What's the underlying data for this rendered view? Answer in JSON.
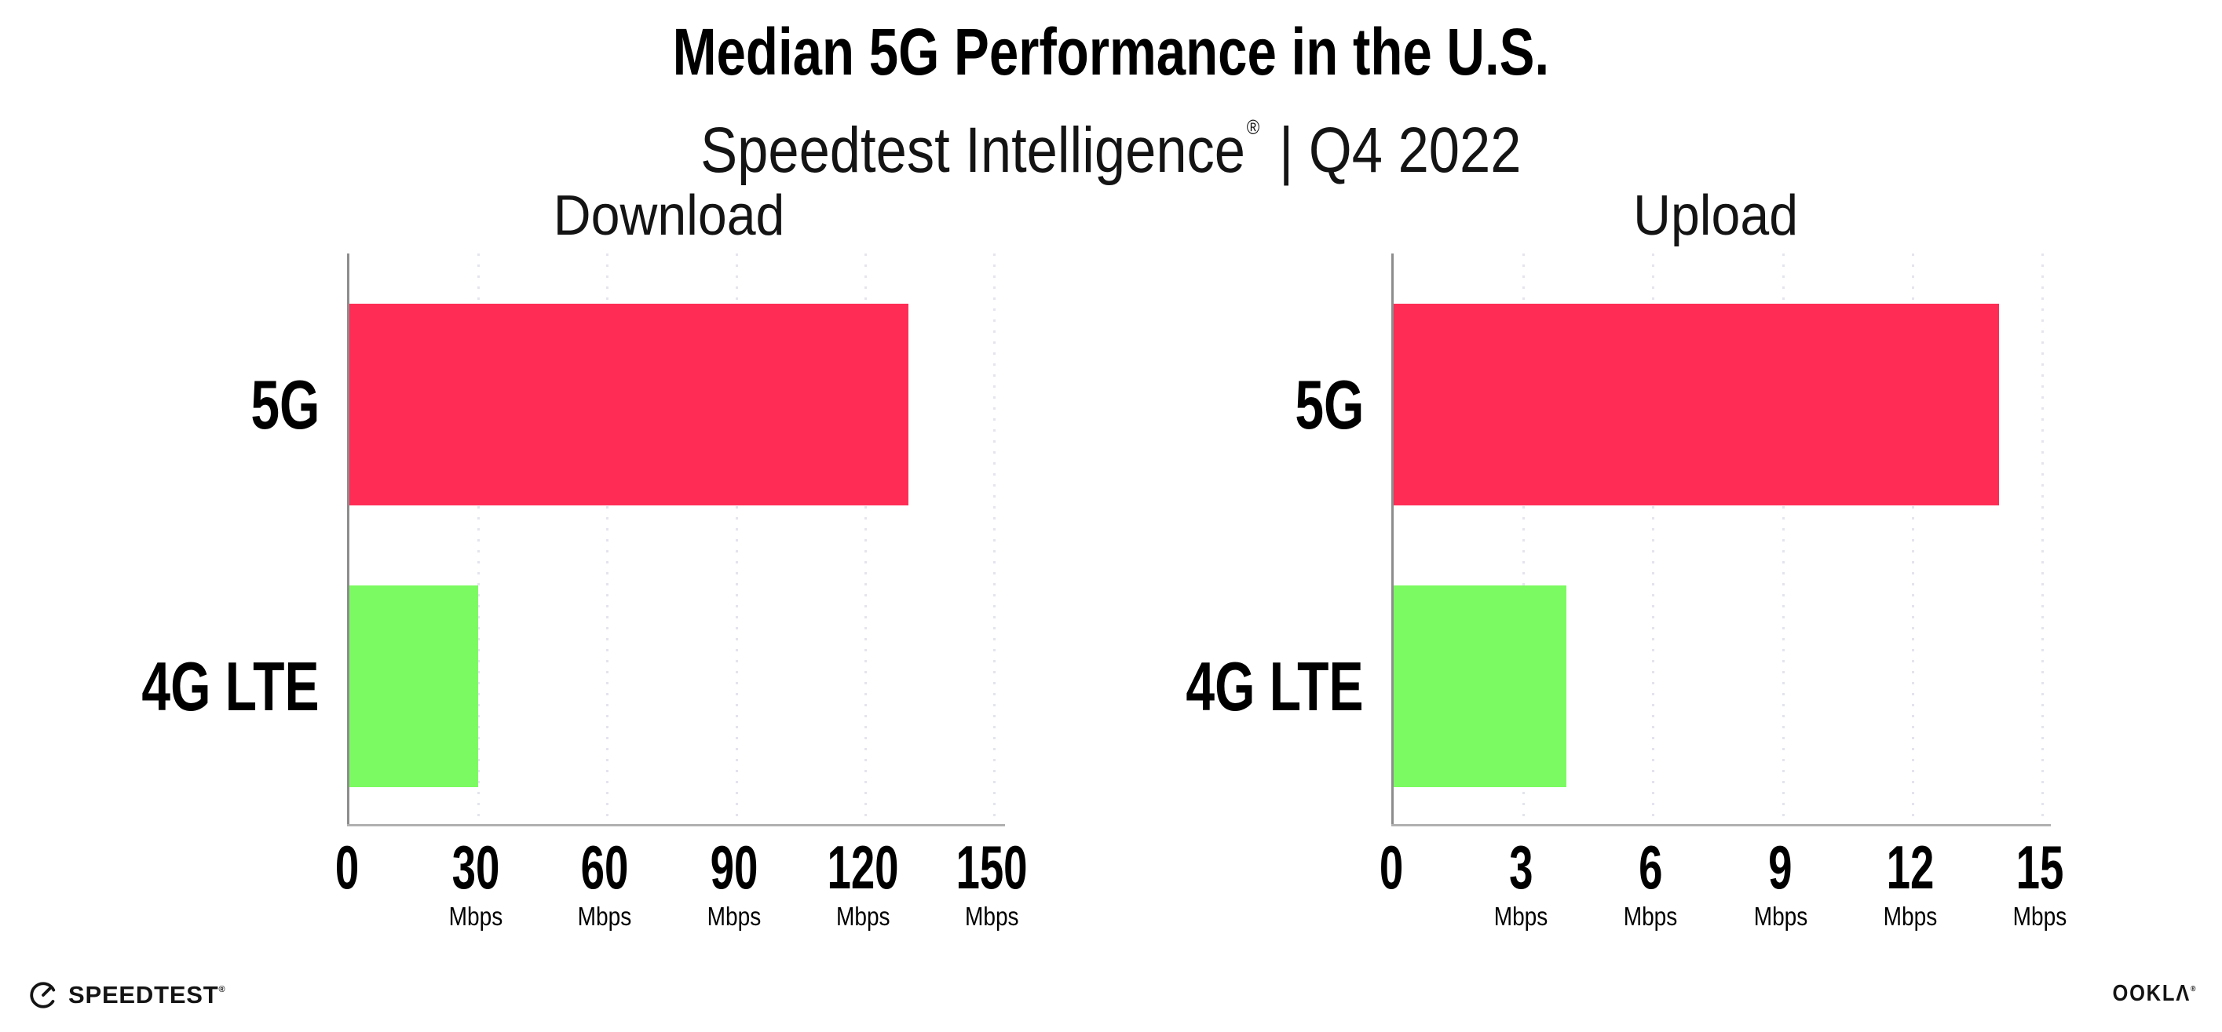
{
  "header": {
    "title": "Median 5G Performance in the U.S.",
    "subtitle_brand": "Speedtest Intelligence",
    "subtitle_reg": "®",
    "subtitle_rest": "| Q4 2022"
  },
  "chart_data": [
    {
      "type": "bar",
      "orientation": "horizontal",
      "title": "Download",
      "categories": [
        "5G",
        "4G LTE"
      ],
      "values": [
        130,
        30
      ],
      "unit": "Mbps",
      "xlim": [
        0,
        150
      ],
      "xticks": [
        0,
        30,
        60,
        90,
        120,
        150
      ],
      "tick_unit": "Mbps",
      "bar_colors": [
        "#FF2D55",
        "#7CFA61"
      ],
      "grid": "dotted-vertical",
      "legend": "none"
    },
    {
      "type": "bar",
      "orientation": "horizontal",
      "title": "Upload",
      "categories": [
        "5G",
        "4G LTE"
      ],
      "values": [
        14,
        4
      ],
      "unit": "Mbps",
      "xlim": [
        0,
        15
      ],
      "xticks": [
        0,
        3,
        6,
        9,
        12,
        15
      ],
      "tick_unit": "Mbps",
      "bar_colors": [
        "#FF2D55",
        "#7CFA61"
      ],
      "grid": "dotted-vertical",
      "legend": "none"
    }
  ],
  "footer": {
    "speedtest_label": "SPEEDTEST",
    "speedtest_reg": "®",
    "ookla_label": "OOKLΛ",
    "ookla_reg": "®"
  },
  "colors": {
    "bar_5g": "#FF2D55",
    "bar_4g_lte": "#7CFA61",
    "y_axis": "#8d8d8d",
    "x_axis": "#b0b0b0",
    "gridline": "#e4e4ee",
    "text": "#000000",
    "background": "#ffffff"
  }
}
